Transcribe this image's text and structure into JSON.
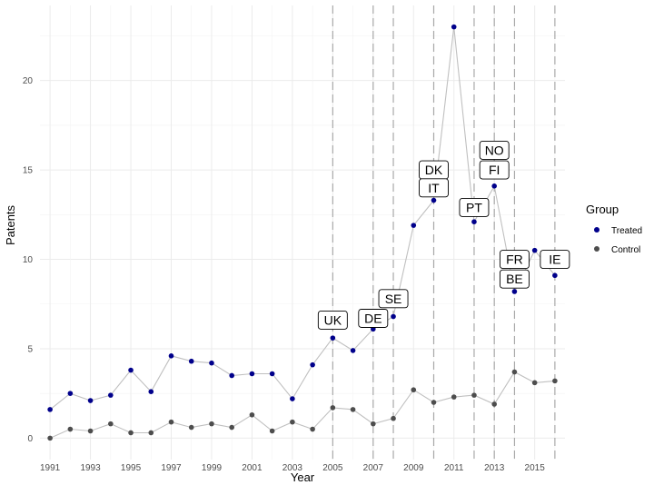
{
  "chart_data": {
    "type": "line",
    "title": "",
    "xlabel": "Year",
    "ylabel": "Patents",
    "xlim": [
      1990.5,
      2016.5
    ],
    "ylim": [
      -1.2,
      24.2
    ],
    "grid": true,
    "x_ticks": [
      1991,
      1993,
      1995,
      1997,
      1999,
      2001,
      2003,
      2005,
      2007,
      2009,
      2011,
      2013,
      2015
    ],
    "y_ticks": [
      0,
      5,
      10,
      15,
      20
    ],
    "x": [
      1991,
      1992,
      1993,
      1994,
      1995,
      1996,
      1997,
      1998,
      1999,
      2000,
      2001,
      2002,
      2003,
      2004,
      2005,
      2006,
      2007,
      2008,
      2009,
      2010,
      2011,
      2012,
      2013,
      2014,
      2015,
      2016
    ],
    "series": [
      {
        "name": "Treated",
        "color": "#00008b",
        "values": [
          1.6,
          2.5,
          2.1,
          2.4,
          3.8,
          2.6,
          4.6,
          4.3,
          4.2,
          3.5,
          3.6,
          3.6,
          2.2,
          4.1,
          5.6,
          4.9,
          6.1,
          6.8,
          11.9,
          13.3,
          23.0,
          12.1,
          14.1,
          8.2,
          10.5,
          9.1
        ]
      },
      {
        "name": "Control",
        "color": "#4d4d4d",
        "values": [
          0.0,
          0.5,
          0.4,
          0.8,
          0.3,
          0.3,
          0.9,
          0.6,
          0.8,
          0.6,
          1.3,
          0.4,
          0.9,
          0.5,
          1.7,
          1.6,
          0.8,
          1.1,
          2.7,
          2.0,
          2.3,
          2.4,
          1.9,
          3.7,
          3.1,
          3.2
        ]
      }
    ],
    "treatment_lines": [
      2005,
      2007,
      2008,
      2010,
      2012,
      2013,
      2014,
      2016
    ],
    "annotations": [
      {
        "text": "UK",
        "x": 2005,
        "y": 6.6
      },
      {
        "text": "DE",
        "x": 2007,
        "y": 6.7
      },
      {
        "text": "SE",
        "x": 2008,
        "y": 7.8
      },
      {
        "text": "DK",
        "x": 2010,
        "y": 15.0
      },
      {
        "text": "IT",
        "x": 2010,
        "y": 14.0
      },
      {
        "text": "PT",
        "x": 2012,
        "y": 12.9
      },
      {
        "text": "NO",
        "x": 2013,
        "y": 16.1
      },
      {
        "text": "FI",
        "x": 2013,
        "y": 15.0
      },
      {
        "text": "FR",
        "x": 2014,
        "y": 10.0
      },
      {
        "text": "BE",
        "x": 2014,
        "y": 8.9
      },
      {
        "text": "IE",
        "x": 2016,
        "y": 10.0
      }
    ],
    "legend": {
      "title": "Group",
      "position": "right",
      "entries": [
        {
          "label": "Treated",
          "color": "#00008b"
        },
        {
          "label": "Control",
          "color": "#4d4d4d"
        }
      ]
    }
  }
}
